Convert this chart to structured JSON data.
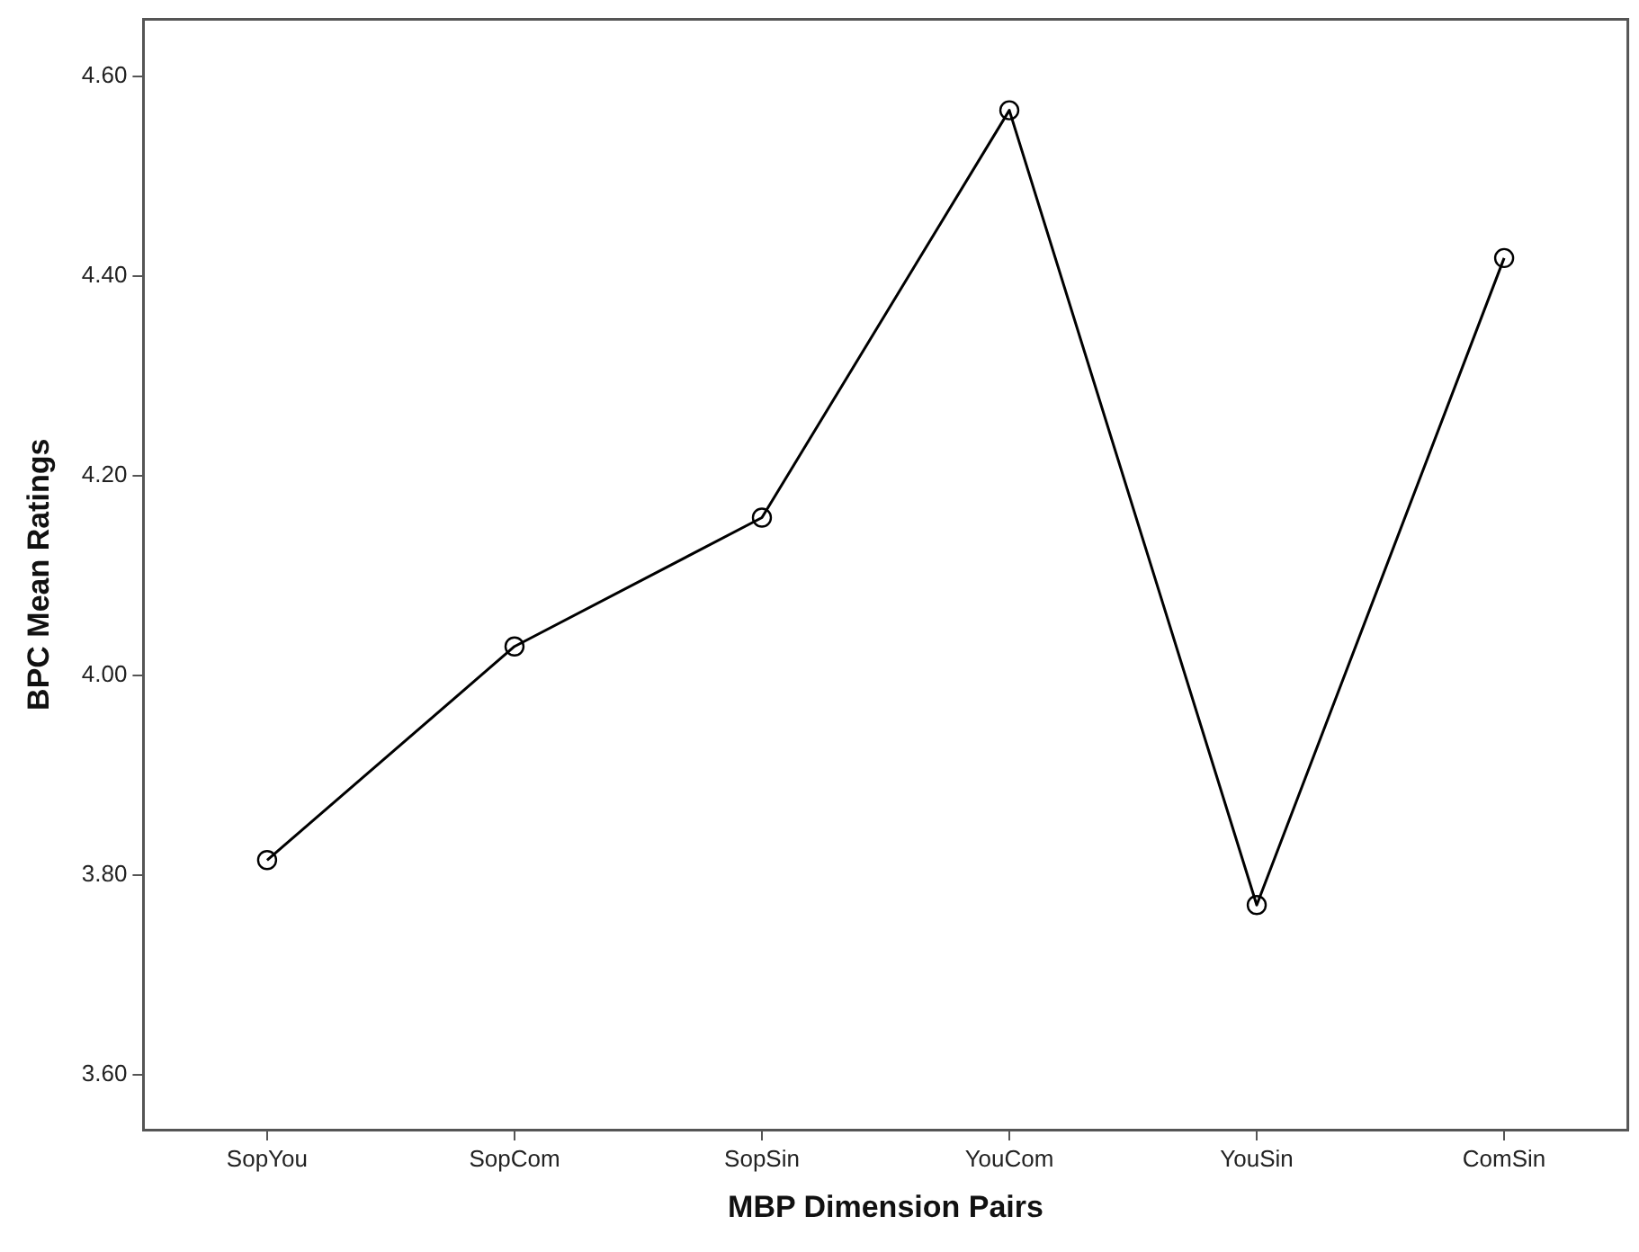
{
  "chart_data": {
    "type": "line",
    "xlabel": "MBP Dimension Pairs",
    "ylabel": "BPC Mean Ratings",
    "categories": [
      "SopYou",
      "SopCom",
      "SopSin",
      "YouCom",
      "YouSin",
      "ComSin"
    ],
    "series": [
      {
        "color": "#000000",
        "values": [
          3.815,
          4.029,
          4.158,
          4.566,
          3.77,
          4.418
        ]
      }
    ],
    "ylim": [
      3.545,
      4.657
    ],
    "yticks": [
      {
        "value": 3.6,
        "label": "3.60"
      },
      {
        "value": 3.8,
        "label": "3.80"
      },
      {
        "value": 4.0,
        "label": "4.00"
      },
      {
        "value": 4.2,
        "label": "4.20"
      },
      {
        "value": 4.4,
        "label": "4.40"
      },
      {
        "value": 4.6,
        "label": "4.60"
      }
    ],
    "marker": "circle",
    "line_style": "solid",
    "grid": false,
    "legend": false
  }
}
